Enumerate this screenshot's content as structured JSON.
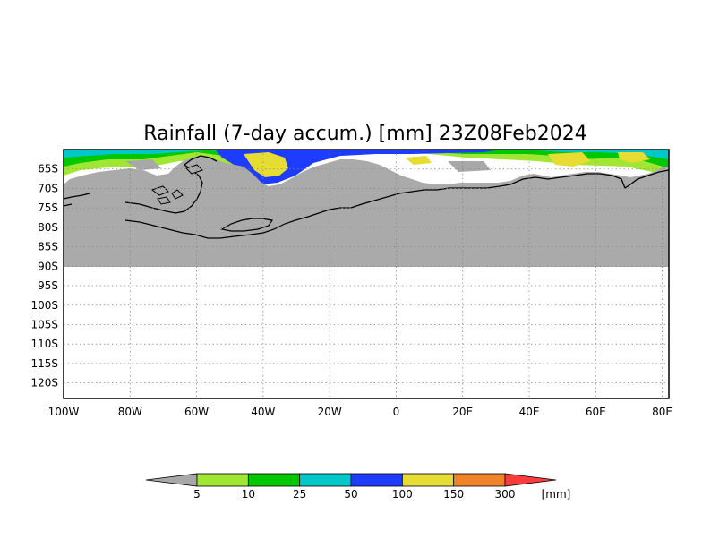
{
  "title": "Rainfall (7-day accum.) [mm] 23Z08Feb2024",
  "map": {
    "projection": "latitude-longitude",
    "lon_range": [
      -100,
      82
    ],
    "lat_range": [
      -124,
      -60
    ],
    "land_color": "#aaaaaa",
    "coastline_color": "#000000",
    "grid": "dotted",
    "lat_ticks": [
      "65S",
      "70S",
      "75S",
      "80S",
      "85S",
      "90S",
      "95S",
      "100S",
      "105S",
      "110S",
      "115S",
      "120S"
    ],
    "lon_ticks": [
      "100W",
      "80W",
      "60W",
      "40W",
      "20W",
      "0",
      "20E",
      "40E",
      "60E",
      "80E"
    ]
  },
  "legend": {
    "labels": [
      "5",
      "10",
      "25",
      "50",
      "100",
      "150",
      "300"
    ],
    "unit": "[mm]",
    "colors": [
      "#a8a8a8",
      "#a0e632",
      "#00c800",
      "#00c8c8",
      "#1e3cff",
      "#e6dc32",
      "#f08228",
      "#fa3c3c"
    ]
  }
}
